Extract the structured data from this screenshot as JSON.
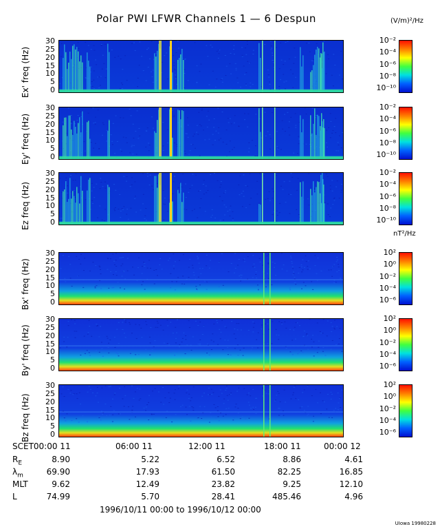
{
  "title": "Polar PWI LFWR Channels 1 — 6 Despun",
  "units": {
    "electric": "(V/m)²/Hz",
    "magnetic": "nT²/Hz"
  },
  "colors": {
    "background_dark_blue": "#0a2fd0",
    "bright_line": "#ffff40",
    "band_green": "#20e060"
  },
  "chart_data": {
    "type": "heatmap",
    "x_tick_labels": [
      "SCET00:00 11",
      "06:00 11",
      "12:00 11",
      "18:00 11",
      "00:00 12"
    ],
    "y_ticks": [
      "30",
      "25",
      "20",
      "15",
      "10",
      "5",
      "0"
    ],
    "ylim": [
      0,
      30
    ],
    "panels": [
      {
        "ylabel": "Ex' freq (Hz)",
        "colorbar": [
          "10⁻²",
          "10⁻⁴",
          "10⁻⁶",
          "10⁻⁸",
          "10⁻¹⁰"
        ]
      },
      {
        "ylabel": "Ey' freq (Hz)",
        "colorbar": [
          "10⁻²",
          "10⁻⁴",
          "10⁻⁶",
          "10⁻⁸",
          "10⁻¹⁰"
        ]
      },
      {
        "ylabel": "Ez freq (Hz)",
        "colorbar": [
          "10⁻²",
          "10⁻⁴",
          "10⁻⁶",
          "10⁻⁸",
          "10⁻¹⁰"
        ]
      },
      {
        "ylabel": "Bx' freq (Hz)",
        "colorbar": [
          "10²",
          "10⁰",
          "10⁻²",
          "10⁻⁴",
          "10⁻⁶"
        ]
      },
      {
        "ylabel": "By' freq (Hz)",
        "colorbar": [
          "10²",
          "10⁰",
          "10⁻²",
          "10⁻⁴",
          "10⁻⁶"
        ]
      },
      {
        "ylabel": "Bz freq (Hz)",
        "colorbar": [
          "10²",
          "10⁰",
          "10⁻²",
          "10⁻⁴",
          "10⁻⁶"
        ]
      }
    ]
  },
  "ephemeris": {
    "rows": [
      {
        "label": "R",
        "sub": "E",
        "values": [
          "8.90",
          "5.22",
          "6.52",
          "8.86",
          "4.61"
        ]
      },
      {
        "label": "λ",
        "sub": "m",
        "values": [
          "69.90",
          "17.93",
          "61.50",
          "82.25",
          "16.85"
        ]
      },
      {
        "label": "MLT",
        "sub": "",
        "values": [
          "9.62",
          "12.49",
          "23.82",
          "9.25",
          "12.10"
        ]
      },
      {
        "label": "L",
        "sub": "",
        "values": [
          "74.99",
          "5.70",
          "28.41",
          "485.46",
          "4.96"
        ]
      }
    ]
  },
  "date_range": "1996/10/11 00:00 to 1996/10/12 00:00",
  "credit": "UIowa 19980228"
}
